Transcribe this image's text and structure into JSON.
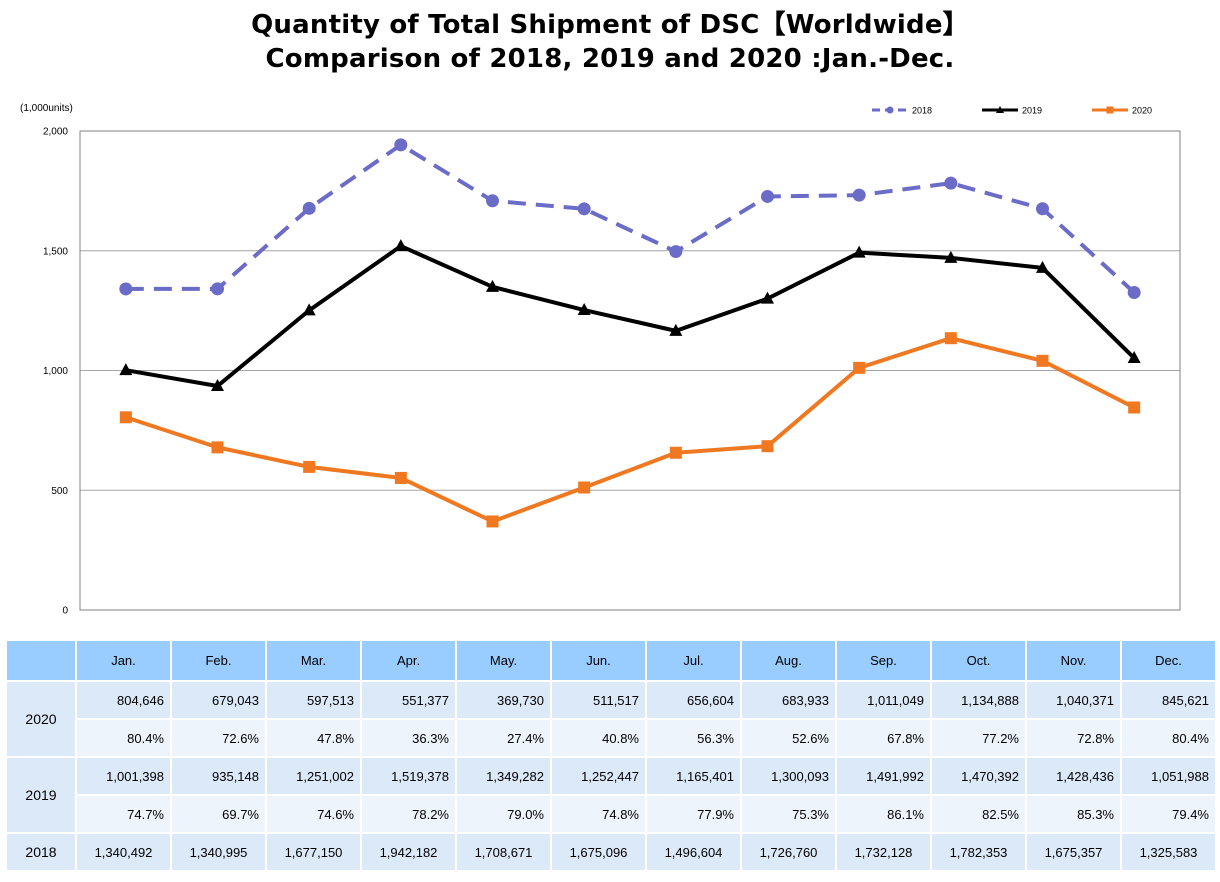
{
  "title_line1": "Quantity of Total Shipment of DSC【Worldwide】",
  "title_line2": "Comparison of 2018, 2019 and 2020 :Jan.-Dec.",
  "chart_data": {
    "type": "line",
    "unit_label": "(1,000units)",
    "categories": [
      "Jan.",
      "Feb.",
      "Mar.",
      "Apr.",
      "May.",
      "Jun.",
      "Jul.",
      "Aug.",
      "Sep.",
      "Oct.",
      "Nov.",
      "Dec."
    ],
    "ylim": [
      0,
      2000
    ],
    "yticks": [
      0,
      500,
      1000,
      1500,
      2000
    ],
    "ytick_labels": [
      "0",
      "500",
      "1,000",
      "1,500",
      "2,000"
    ],
    "grid": true,
    "legend_position": "top-right",
    "series": [
      {
        "name": "2018",
        "color": "#6b6bc8",
        "style": "dashed",
        "marker": "circle",
        "values": [
          1340.492,
          1340.995,
          1677.15,
          1942.182,
          1708.671,
          1675.096,
          1496.604,
          1726.76,
          1732.128,
          1782.353,
          1675.357,
          1325.583
        ]
      },
      {
        "name": "2019",
        "color": "#000000",
        "style": "solid",
        "marker": "triangle",
        "values": [
          1001.398,
          935.148,
          1251.002,
          1519.378,
          1349.282,
          1252.447,
          1165.401,
          1300.093,
          1491.992,
          1470.392,
          1428.436,
          1051.988
        ]
      },
      {
        "name": "2020",
        "color": "#f07820",
        "style": "solid",
        "marker": "square",
        "values": [
          804.646,
          679.043,
          597.513,
          551.377,
          369.73,
          511.517,
          656.604,
          683.933,
          1011.049,
          1134.888,
          1040.371,
          845.621
        ]
      }
    ]
  },
  "table": {
    "months": [
      "Jan.",
      "Feb.",
      "Mar.",
      "Apr.",
      "May.",
      "Jun.",
      "Jul.",
      "Aug.",
      "Sep.",
      "Oct.",
      "Nov.",
      "Dec."
    ],
    "rows": [
      {
        "year": "2020",
        "values": [
          "804,646",
          "679,043",
          "597,513",
          "551,377",
          "369,730",
          "511,517",
          "656,604",
          "683,933",
          "1,011,049",
          "1,134,888",
          "1,040,371",
          "845,621"
        ],
        "percents": [
          "80.4%",
          "72.6%",
          "47.8%",
          "36.3%",
          "27.4%",
          "40.8%",
          "56.3%",
          "52.6%",
          "67.8%",
          "77.2%",
          "72.8%",
          "80.4%"
        ]
      },
      {
        "year": "2019",
        "values": [
          "1,001,398",
          "935,148",
          "1,251,002",
          "1,519,378",
          "1,349,282",
          "1,252,447",
          "1,165,401",
          "1,300,093",
          "1,491,992",
          "1,470,392",
          "1,428,436",
          "1,051,988"
        ],
        "percents": [
          "74.7%",
          "69.7%",
          "74.6%",
          "78.2%",
          "79.0%",
          "74.8%",
          "77.9%",
          "75.3%",
          "86.1%",
          "82.5%",
          "85.3%",
          "79.4%"
        ]
      },
      {
        "year": "2018",
        "values": [
          "1,340,492",
          "1,340,995",
          "1,677,150",
          "1,942,182",
          "1,708,671",
          "1,675,096",
          "1,496,604",
          "1,726,760",
          "1,732,128",
          "1,782,353",
          "1,675,357",
          "1,325,583"
        ],
        "percents": []
      }
    ]
  }
}
